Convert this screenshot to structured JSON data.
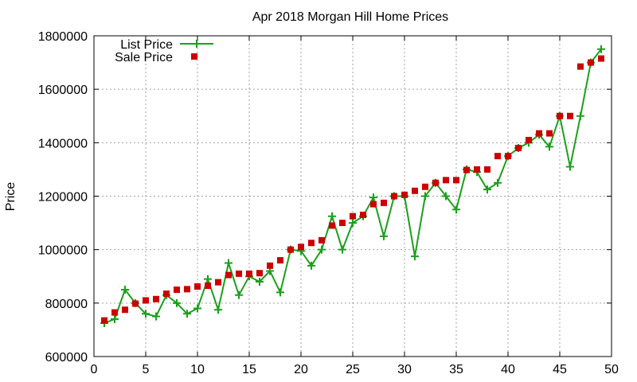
{
  "chart_data": {
    "type": "line",
    "title": "Apr 2018 Morgan Hill Home Prices",
    "xlabel": "",
    "ylabel": "Price",
    "xlim": [
      0,
      50
    ],
    "ylim": [
      600000,
      1800000
    ],
    "x_ticks": [
      "0",
      "5",
      "10",
      "15",
      "20",
      "25",
      "30",
      "35",
      "40",
      "45",
      "50"
    ],
    "y_ticks": [
      "600000",
      "800000",
      "1000000",
      "1200000",
      "1400000",
      "1600000",
      "1800000"
    ],
    "grid": true,
    "legend_position": "top-left",
    "x": [
      1,
      2,
      3,
      4,
      5,
      6,
      7,
      8,
      9,
      10,
      11,
      12,
      13,
      14,
      15,
      16,
      17,
      18,
      19,
      20,
      21,
      22,
      23,
      24,
      25,
      26,
      27,
      28,
      29,
      30,
      31,
      32,
      33,
      34,
      35,
      36,
      37,
      38,
      39,
      40,
      41,
      42,
      43,
      44,
      45,
      46,
      47,
      48,
      49
    ],
    "series": [
      {
        "name": "List Price",
        "style": "line-points",
        "color": "#1aa01a",
        "values": [
          725000,
          740000,
          850000,
          800000,
          760000,
          750000,
          830000,
          800000,
          760000,
          780000,
          890000,
          775000,
          950000,
          830000,
          900000,
          880000,
          920000,
          840000,
          1000000,
          995000,
          940000,
          1000000,
          1125000,
          1000000,
          1100000,
          1125000,
          1195000,
          1050000,
          1200000,
          1200000,
          975000,
          1200000,
          1250000,
          1200000,
          1150000,
          1300000,
          1290000,
          1225000,
          1250000,
          1350000,
          1380000,
          1400000,
          1430000,
          1385000,
          1500000,
          1310000,
          1500000,
          1700000,
          1750000
        ]
      },
      {
        "name": "Sale Price",
        "style": "points",
        "color": "#cc0000",
        "values": [
          735000,
          765000,
          775000,
          798000,
          810000,
          815000,
          835000,
          850000,
          852000,
          862000,
          865000,
          878000,
          905000,
          910000,
          910000,
          912000,
          940000,
          960000,
          1000000,
          1010000,
          1025000,
          1035000,
          1090000,
          1100000,
          1125000,
          1130000,
          1170000,
          1175000,
          1200000,
          1205000,
          1220000,
          1235000,
          1250000,
          1260000,
          1260000,
          1298000,
          1300000,
          1300000,
          1350000,
          1350000,
          1380000,
          1410000,
          1435000,
          1435000,
          1500000,
          1500000,
          1685000,
          1700000,
          1715000
        ]
      }
    ]
  }
}
